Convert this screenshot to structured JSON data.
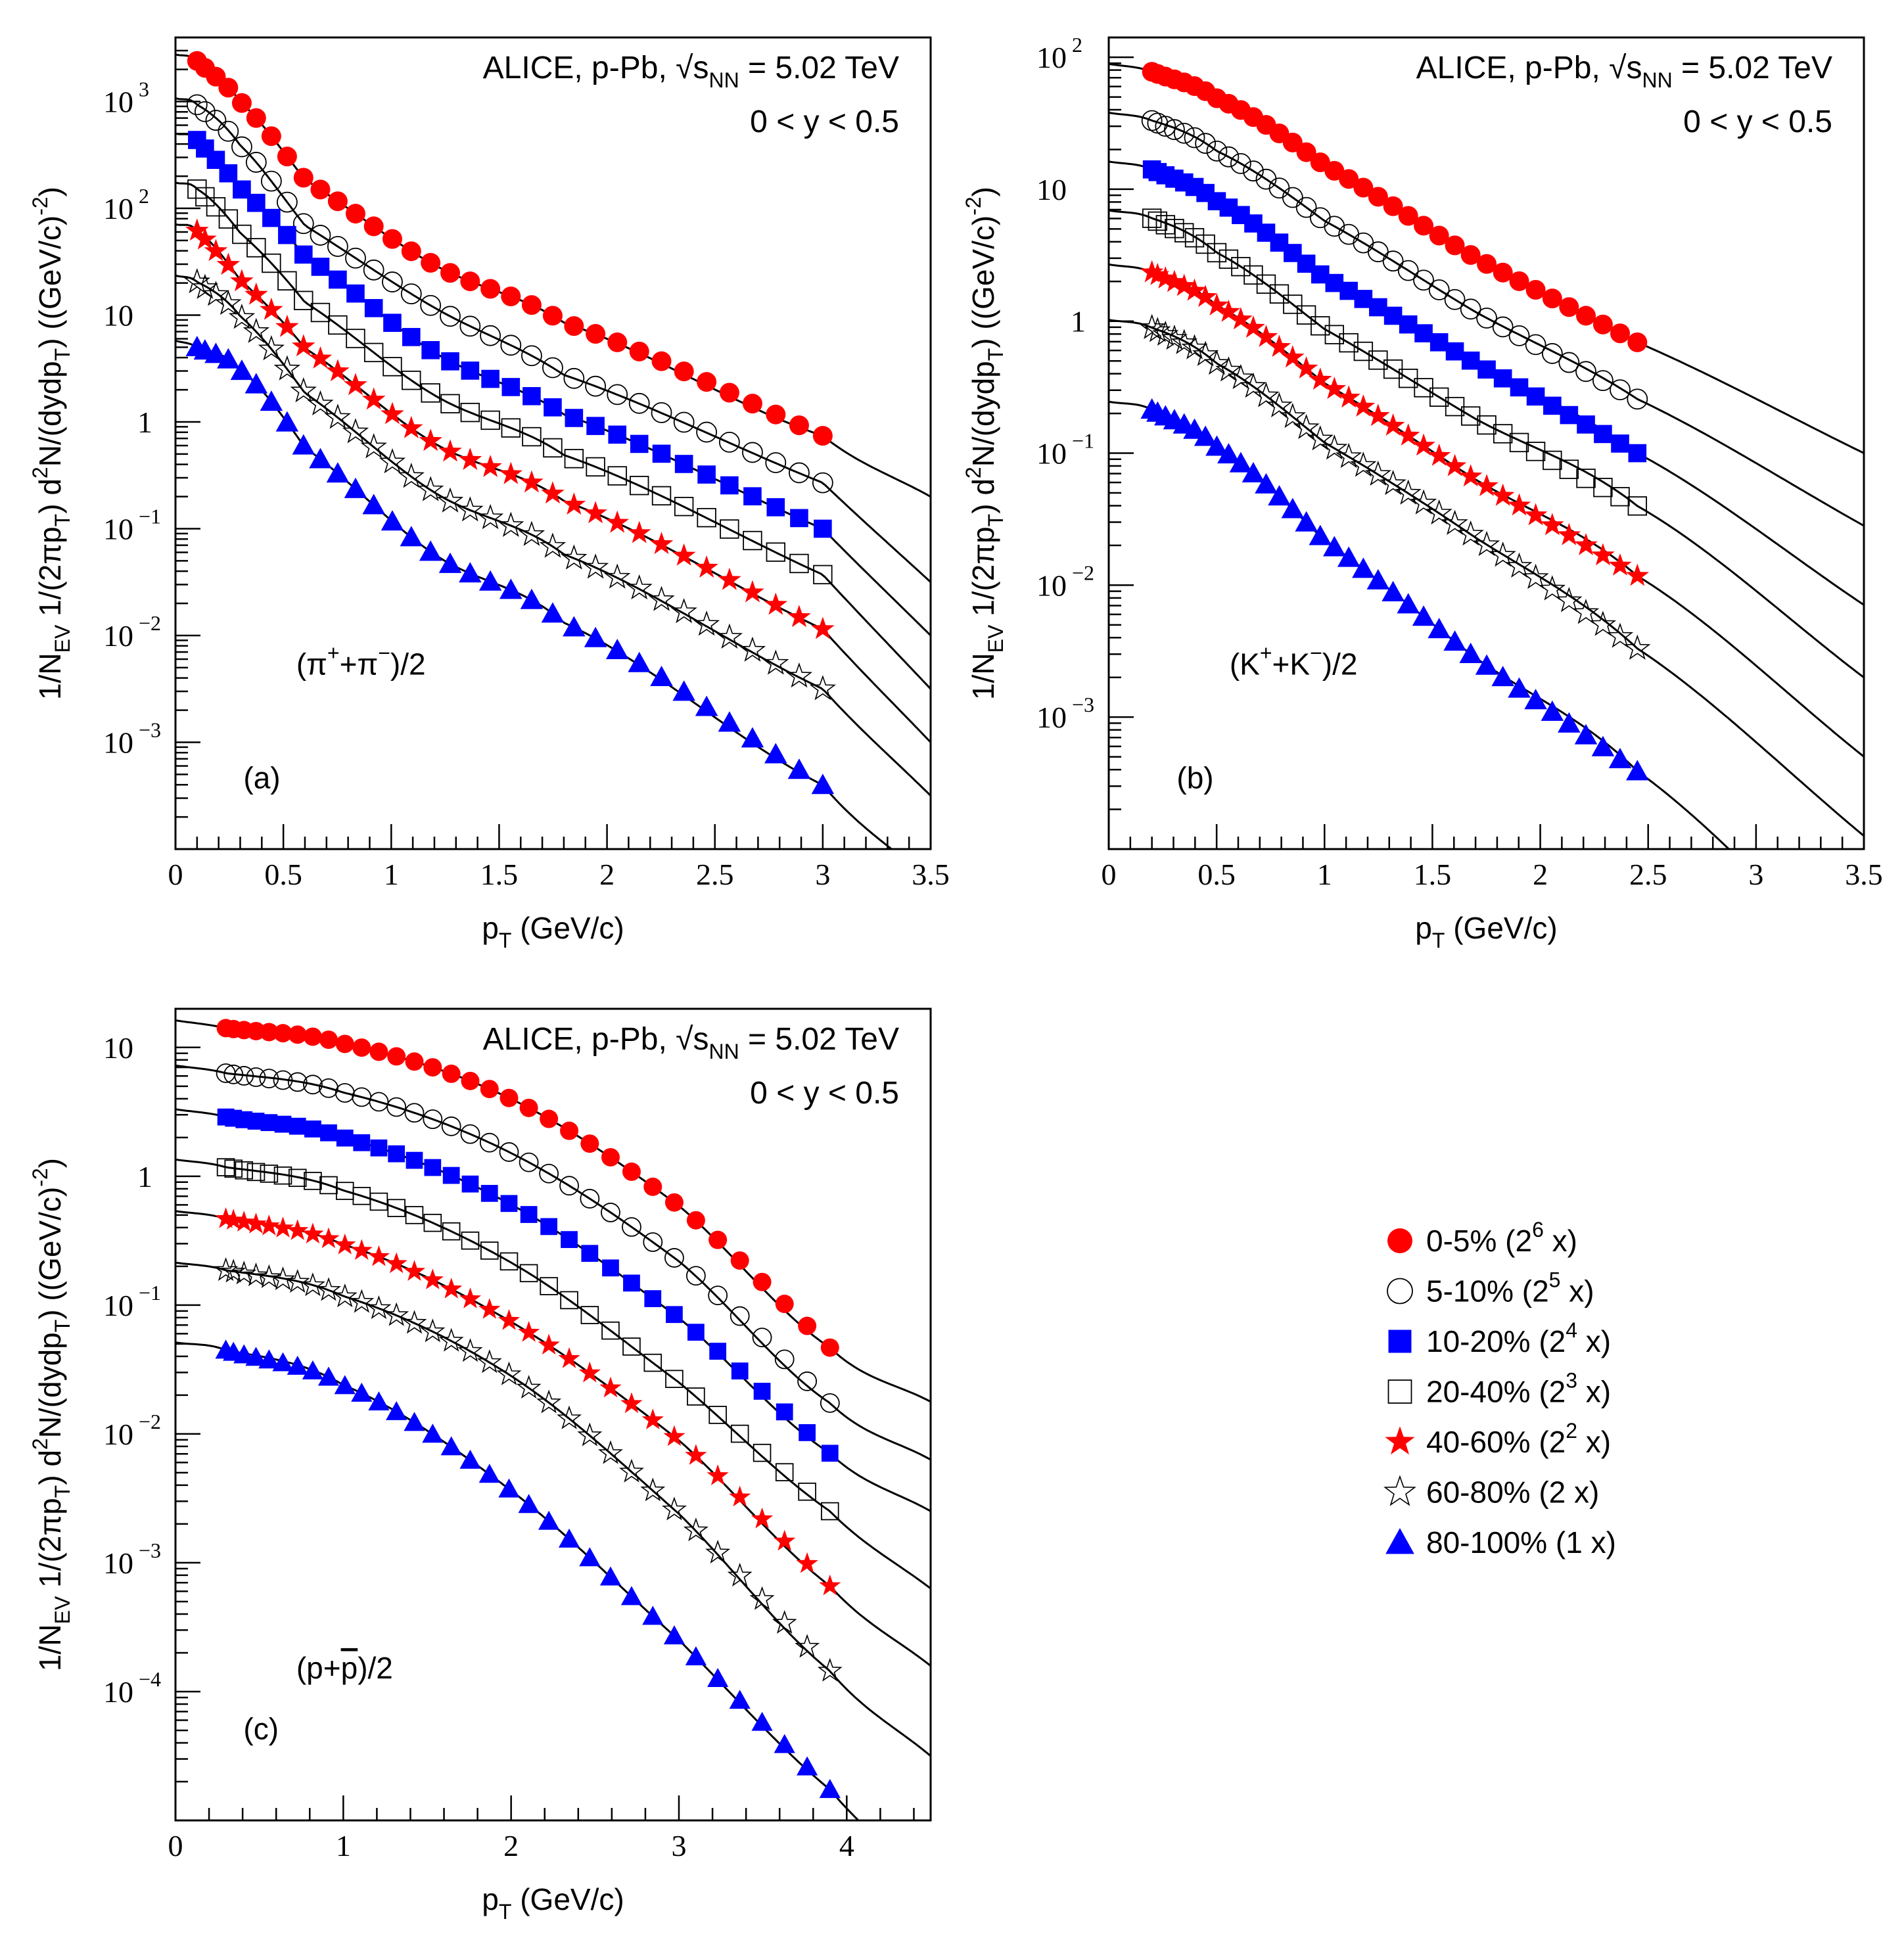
{
  "colors": {
    "red": "#ff0000",
    "blue": "#0000ff",
    "black": "#000000"
  },
  "chart_data": [
    {
      "type": "scatter",
      "panel_label": "(a)",
      "species_text": "(π⁺+π⁻)/2",
      "species": {
        "pre": "(π",
        "sup1": "+",
        "mid": "+π",
        "sup2": "−",
        "post": ")/2"
      },
      "header": {
        "experiment": "ALICE, p-Pb,",
        "energy_var": "√s",
        "energy_sub": "NN",
        "energy_value": "= 5.02 TeV",
        "rapidity": "0 < y < 0.5"
      },
      "ylabel": "1/N_EV 1/(2πp_T) d²N/(dydp_T) ((GeV/c)⁻²)",
      "xlabel": "p_T (GeV/c)",
      "xlim": [
        0,
        3.5
      ],
      "ylim_log10": [
        -4.0,
        3.6
      ],
      "xticks": [
        0,
        0.5,
        1,
        1.5,
        2,
        2.5,
        3,
        3.5
      ],
      "xtick_labels": [
        "0",
        "0.5",
        "1",
        "1.5",
        "2",
        "2.5",
        "3",
        "3.5"
      ],
      "yticks": [
        {
          "exp": 3,
          "base": "10",
          "sup": "3"
        },
        {
          "exp": 2,
          "base": "10",
          "sup": "2"
        },
        {
          "exp": 1,
          "base": "10",
          "sup": ""
        },
        {
          "exp": 0,
          "base": "1",
          "sup": ""
        },
        {
          "exp": -1,
          "base": "10",
          "sup": "−1"
        },
        {
          "exp": -2,
          "base": "10",
          "sup": "−2"
        },
        {
          "exp": -3,
          "base": "10",
          "sup": "−3"
        }
      ],
      "series": [
        {
          "name": "0-5%",
          "log_y": [
            3.38,
            3.0,
            2.27,
            1.47,
            0.93,
            -0.13
          ],
          "x": [
            0.1,
            0.3,
            0.6,
            1.2,
            1.8,
            3.0
          ]
        },
        {
          "name": "5-10%",
          "log_y": [
            2.97,
            2.59,
            1.84,
            1.07,
            0.44,
            -0.57
          ],
          "x": [
            0.1,
            0.3,
            0.6,
            1.2,
            1.8,
            3.0
          ]
        },
        {
          "name": "10-20%",
          "log_y": [
            2.64,
            2.19,
            1.55,
            0.65,
            0.07,
            -1.0
          ],
          "x": [
            0.1,
            0.3,
            0.6,
            1.2,
            1.8,
            3.0
          ]
        },
        {
          "name": "20-40%",
          "log_y": [
            2.18,
            1.77,
            1.12,
            0.25,
            -0.31,
            -1.43
          ],
          "x": [
            0.1,
            0.3,
            0.6,
            1.2,
            1.8,
            3.0
          ]
        },
        {
          "name": "40-60%",
          "log_y": [
            1.79,
            1.33,
            0.69,
            -0.2,
            -0.74,
            -1.94
          ],
          "x": [
            0.1,
            0.3,
            0.6,
            1.2,
            1.8,
            3.0
          ]
        },
        {
          "name": "60-80%",
          "log_y": [
            1.31,
            0.99,
            0.27,
            -0.66,
            -1.24,
            -2.5
          ],
          "x": [
            0.1,
            0.3,
            0.6,
            1.2,
            1.8,
            3.0
          ]
        },
        {
          "name": "80-100%",
          "log_y": [
            0.7,
            0.49,
            -0.24,
            -1.24,
            -1.88,
            -3.4
          ],
          "x": [
            0.1,
            0.3,
            0.6,
            1.2,
            1.8,
            3.0
          ]
        }
      ],
      "fit_end_log_y": [
        -0.7,
        -1.5,
        -2.0,
        -2.5,
        -3.0,
        -3.5,
        -4.3
      ]
    },
    {
      "type": "scatter",
      "panel_label": "(b)",
      "species_text": "(K⁺+K⁻)/2",
      "species": {
        "pre": "(K",
        "sup1": "+",
        "mid": "+K",
        "sup2": "−",
        "post": ")/2"
      },
      "header": {
        "experiment": "ALICE, p-Pb,",
        "energy_var": "√s",
        "energy_sub": "NN",
        "energy_value": "= 5.02 TeV",
        "rapidity": "0 < y < 0.5"
      },
      "ylabel": "1/N_EV 1/(2πp_T) d²N/(dydp_T) ((GeV/c)⁻²)",
      "xlabel": "p_T (GeV/c)",
      "xlim": [
        0,
        3.5
      ],
      "ylim_log10": [
        -4.0,
        2.15
      ],
      "xticks": [
        0,
        0.5,
        1,
        1.5,
        2,
        2.5,
        3,
        3.5
      ],
      "xtick_labels": [
        "0",
        "0.5",
        "1",
        "1.5",
        "2",
        "2.5",
        "3",
        "3.5"
      ],
      "yticks": [
        {
          "exp": 2,
          "base": "10",
          "sup": "2"
        },
        {
          "exp": 1,
          "base": "10",
          "sup": ""
        },
        {
          "exp": 0,
          "base": "1",
          "sup": ""
        },
        {
          "exp": -1,
          "base": "10",
          "sup": "−1"
        },
        {
          "exp": -2,
          "base": "10",
          "sup": "−2"
        },
        {
          "exp": -3,
          "base": "10",
          "sup": "−3"
        }
      ],
      "series": [
        {
          "name": "0-5%",
          "log_y": [
            1.89,
            1.69,
            1.18,
            0.48,
            -0.16
          ],
          "x": [
            0.2,
            0.5,
            1.0,
            1.7,
            2.45
          ]
        },
        {
          "name": "5-10%",
          "log_y": [
            1.52,
            1.29,
            0.76,
            0.07,
            -0.59
          ],
          "x": [
            0.2,
            0.5,
            1.0,
            1.7,
            2.45
          ]
        },
        {
          "name": "10-20%",
          "log_y": [
            1.15,
            0.91,
            0.33,
            -0.32,
            -1.0
          ],
          "x": [
            0.2,
            0.5,
            1.0,
            1.7,
            2.45
          ]
        },
        {
          "name": "20-40%",
          "log_y": [
            0.78,
            0.52,
            -0.06,
            -0.74,
            -1.4
          ],
          "x": [
            0.2,
            0.5,
            1.0,
            1.7,
            2.45
          ]
        },
        {
          "name": "40-60%",
          "log_y": [
            0.37,
            0.12,
            -0.47,
            -1.2,
            -1.93
          ],
          "x": [
            0.2,
            0.5,
            1.0,
            1.7,
            2.45
          ]
        },
        {
          "name": "60-80%",
          "log_y": [
            -0.05,
            -0.32,
            -0.92,
            -1.64,
            -2.48
          ],
          "x": [
            0.2,
            0.5,
            1.0,
            1.7,
            2.45
          ]
        },
        {
          "name": "80-100%",
          "log_y": [
            -0.67,
            -0.95,
            -1.66,
            -2.55,
            -3.41
          ],
          "x": [
            0.2,
            0.5,
            1.0,
            1.7,
            2.45
          ]
        }
      ],
      "fit_end_log_y": [
        -1.0,
        -1.55,
        -2.15,
        -2.7,
        -3.3,
        -3.9,
        -5.0
      ]
    },
    {
      "type": "scatter",
      "panel_label": "(c)",
      "species_text": "(p+p̄)/2",
      "species": {
        "pre": "(p+",
        "bar": "p",
        "post": ")/2"
      },
      "header": {
        "experiment": "ALICE, p-Pb,",
        "energy_var": "√s",
        "energy_sub": "NN",
        "energy_value": "= 5.02 TeV",
        "rapidity": "0 < y < 0.5"
      },
      "ylabel": "1/N_EV 1/(2πp_T) d²N/(dydp_T) ((GeV/c)⁻²)",
      "xlabel": "p_T (GeV/c)",
      "xlim": [
        0,
        4.5
      ],
      "ylim_log10": [
        -5.0,
        1.3
      ],
      "xticks": [
        0,
        1,
        2,
        3,
        4
      ],
      "xtick_labels": [
        "0",
        "1",
        "2",
        "3",
        "4"
      ],
      "yticks": [
        {
          "exp": 1,
          "base": "10",
          "sup": ""
        },
        {
          "exp": 0,
          "base": "1",
          "sup": ""
        },
        {
          "exp": -1,
          "base": "10",
          "sup": "−1"
        },
        {
          "exp": -2,
          "base": "10",
          "sup": "−2"
        },
        {
          "exp": -3,
          "base": "10",
          "sup": "−3"
        },
        {
          "exp": -4,
          "base": "10",
          "sup": "−4"
        }
      ],
      "series": [
        {
          "name": "0-5%",
          "log_y": [
            1.15,
            1.03,
            0.6,
            -0.23,
            -1.33
          ],
          "x": [
            0.3,
            1.0,
            2.0,
            3.0,
            3.9
          ]
        },
        {
          "name": "5-10%",
          "log_y": [
            0.8,
            0.65,
            0.18,
            -0.66,
            -1.76
          ],
          "x": [
            0.3,
            1.0,
            2.0,
            3.0,
            3.9
          ]
        },
        {
          "name": "10-20%",
          "log_y": [
            0.46,
            0.3,
            -0.22,
            -1.1,
            -2.15
          ],
          "x": [
            0.3,
            1.0,
            2.0,
            3.0,
            3.9
          ]
        },
        {
          "name": "20-40%",
          "log_y": [
            0.07,
            -0.11,
            -0.67,
            -1.6,
            -2.6
          ],
          "x": [
            0.3,
            1.0,
            2.0,
            3.0,
            3.9
          ]
        },
        {
          "name": "40-60%",
          "log_y": [
            -0.33,
            -0.53,
            -1.13,
            -2.05,
            -3.18
          ],
          "x": [
            0.3,
            1.0,
            2.0,
            3.0,
            3.9
          ]
        },
        {
          "name": "60-80%",
          "log_y": [
            -0.73,
            -0.93,
            -1.55,
            -2.62,
            -3.84
          ],
          "x": [
            0.3,
            1.0,
            2.0,
            3.0,
            3.9
          ]
        },
        {
          "name": "80-100%",
          "log_y": [
            -1.35,
            -1.62,
            -2.44,
            -3.6,
            -4.76
          ],
          "x": [
            0.3,
            1.0,
            2.0,
            3.0,
            3.9
          ]
        }
      ],
      "fit_end_log_y": [
        -1.75,
        -2.2,
        -2.6,
        -3.2,
        -3.8,
        -4.5,
        -5.5
      ]
    }
  ],
  "legend": {
    "placement": "right of panel (c)",
    "entries": [
      {
        "label": "0-5% (2",
        "sup": "6",
        "post": " x)",
        "marker": "circle",
        "filled": true,
        "color": "#ff0000"
      },
      {
        "label": "5-10% (2",
        "sup": "5",
        "post": " x)",
        "marker": "circle",
        "filled": false,
        "color": "#000000"
      },
      {
        "label": "10-20% (2",
        "sup": "4",
        "post": " x)",
        "marker": "square",
        "filled": true,
        "color": "#0000ff"
      },
      {
        "label": "20-40% (2",
        "sup": "3",
        "post": " x)",
        "marker": "square",
        "filled": false,
        "color": "#000000"
      },
      {
        "label": "40-60% (2",
        "sup": "2",
        "post": " x)",
        "marker": "star",
        "filled": true,
        "color": "#ff0000"
      },
      {
        "label": "60-80% (2 x)",
        "sup": "",
        "post": "",
        "marker": "star",
        "filled": false,
        "color": "#000000"
      },
      {
        "label": "80-100% (1 x)",
        "sup": "",
        "post": "",
        "marker": "triangle",
        "filled": true,
        "color": "#0000ff"
      }
    ]
  }
}
